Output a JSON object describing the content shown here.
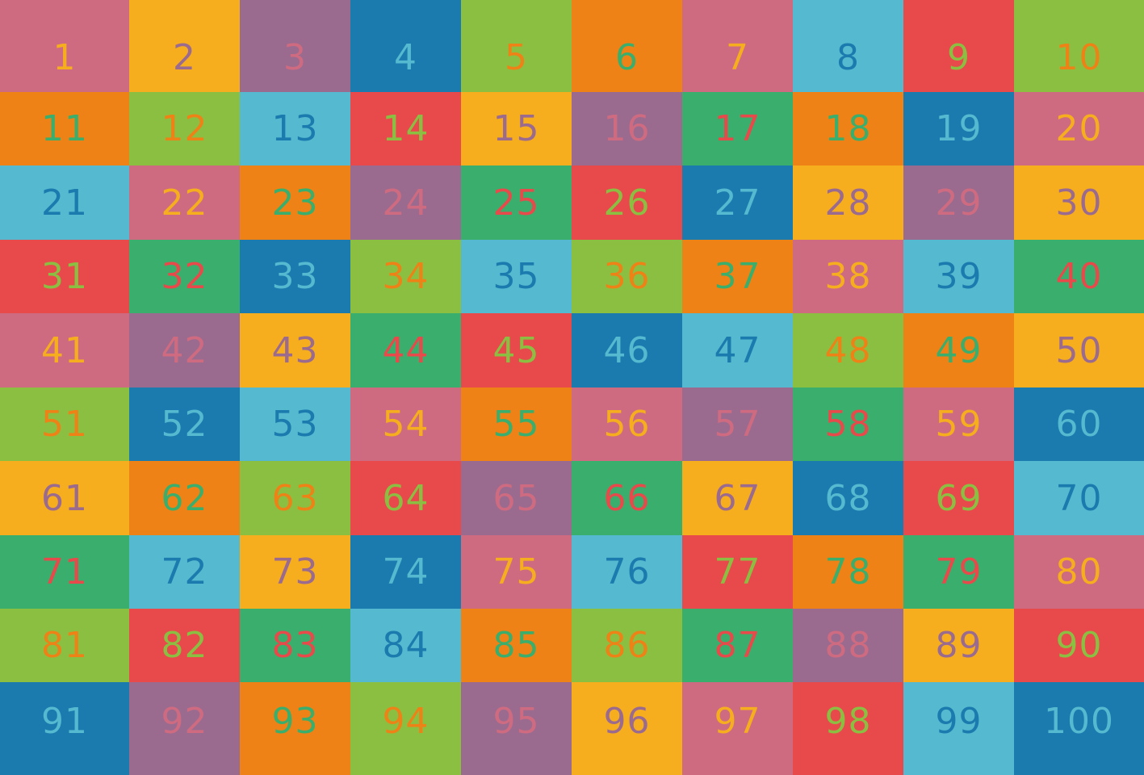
{
  "palette": {
    "pink": {
      "bg": "#cf6b80",
      "text": "#f6ae1e"
    },
    "yellow": {
      "bg": "#f6ae1e",
      "text": "#9b6b8f"
    },
    "purple": {
      "bg": "#9b6b8f",
      "text": "#cf6b80"
    },
    "darkblue": {
      "bg": "#1b7aae",
      "text": "#55b9cf"
    },
    "lightgreen": {
      "bg": "#8bbf42",
      "text": "#ee8217"
    },
    "orange": {
      "bg": "#ee8217",
      "text": "#3aae6c"
    },
    "lightblue": {
      "bg": "#55b9cf",
      "text": "#1b7aae"
    },
    "red": {
      "bg": "#e84a4b",
      "text": "#8bbf42"
    },
    "green": {
      "bg": "#3aae6c",
      "text": "#e84a4b"
    }
  },
  "grid": {
    "cells": [
      {
        "label": "1",
        "color": "pink"
      },
      {
        "label": "2",
        "color": "yellow"
      },
      {
        "label": "3",
        "color": "purple"
      },
      {
        "label": "4",
        "color": "darkblue"
      },
      {
        "label": "5",
        "color": "lightgreen"
      },
      {
        "label": "6",
        "color": "orange"
      },
      {
        "label": "7",
        "color": "pink"
      },
      {
        "label": "8",
        "color": "lightblue"
      },
      {
        "label": "9",
        "color": "red"
      },
      {
        "label": "10",
        "color": "lightgreen"
      },
      {
        "label": "11",
        "color": "orange"
      },
      {
        "label": "12",
        "color": "lightgreen"
      },
      {
        "label": "13",
        "color": "lightblue"
      },
      {
        "label": "14",
        "color": "red"
      },
      {
        "label": "15",
        "color": "yellow"
      },
      {
        "label": "16",
        "color": "purple"
      },
      {
        "label": "17",
        "color": "green"
      },
      {
        "label": "18",
        "color": "orange"
      },
      {
        "label": "19",
        "color": "darkblue"
      },
      {
        "label": "20",
        "color": "pink"
      },
      {
        "label": "21",
        "color": "lightblue"
      },
      {
        "label": "22",
        "color": "pink"
      },
      {
        "label": "23",
        "color": "orange"
      },
      {
        "label": "24",
        "color": "purple"
      },
      {
        "label": "25",
        "color": "green"
      },
      {
        "label": "26",
        "color": "red"
      },
      {
        "label": "27",
        "color": "darkblue"
      },
      {
        "label": "28",
        "color": "yellow"
      },
      {
        "label": "29",
        "color": "purple"
      },
      {
        "label": "30",
        "color": "yellow"
      },
      {
        "label": "31",
        "color": "red"
      },
      {
        "label": "32",
        "color": "green"
      },
      {
        "label": "33",
        "color": "darkblue"
      },
      {
        "label": "34",
        "color": "lightgreen"
      },
      {
        "label": "35",
        "color": "lightblue"
      },
      {
        "label": "36",
        "color": "lightgreen"
      },
      {
        "label": "37",
        "color": "orange"
      },
      {
        "label": "38",
        "color": "pink"
      },
      {
        "label": "39",
        "color": "lightblue"
      },
      {
        "label": "40",
        "color": "green"
      },
      {
        "label": "41",
        "color": "pink"
      },
      {
        "label": "42",
        "color": "purple"
      },
      {
        "label": "43",
        "color": "yellow"
      },
      {
        "label": "44",
        "color": "green"
      },
      {
        "label": "45",
        "color": "red"
      },
      {
        "label": "46",
        "color": "darkblue"
      },
      {
        "label": "47",
        "color": "lightblue"
      },
      {
        "label": "48",
        "color": "lightgreen"
      },
      {
        "label": "49",
        "color": "orange"
      },
      {
        "label": "50",
        "color": "yellow"
      },
      {
        "label": "51",
        "color": "lightgreen"
      },
      {
        "label": "52",
        "color": "darkblue"
      },
      {
        "label": "53",
        "color": "lightblue"
      },
      {
        "label": "54",
        "color": "pink"
      },
      {
        "label": "55",
        "color": "orange"
      },
      {
        "label": "56",
        "color": "pink"
      },
      {
        "label": "57",
        "color": "purple"
      },
      {
        "label": "58",
        "color": "green"
      },
      {
        "label": "59",
        "color": "pink"
      },
      {
        "label": "60",
        "color": "darkblue"
      },
      {
        "label": "61",
        "color": "yellow"
      },
      {
        "label": "62",
        "color": "orange"
      },
      {
        "label": "63",
        "color": "lightgreen"
      },
      {
        "label": "64",
        "color": "red"
      },
      {
        "label": "65",
        "color": "purple"
      },
      {
        "label": "66",
        "color": "green"
      },
      {
        "label": "67",
        "color": "yellow"
      },
      {
        "label": "68",
        "color": "darkblue"
      },
      {
        "label": "69",
        "color": "red"
      },
      {
        "label": "70",
        "color": "lightblue"
      },
      {
        "label": "71",
        "color": "green"
      },
      {
        "label": "72",
        "color": "lightblue"
      },
      {
        "label": "73",
        "color": "yellow"
      },
      {
        "label": "74",
        "color": "darkblue"
      },
      {
        "label": "75",
        "color": "pink"
      },
      {
        "label": "76",
        "color": "lightblue"
      },
      {
        "label": "77",
        "color": "red"
      },
      {
        "label": "78",
        "color": "orange"
      },
      {
        "label": "79",
        "color": "green"
      },
      {
        "label": "80",
        "color": "pink"
      },
      {
        "label": "81",
        "color": "lightgreen"
      },
      {
        "label": "82",
        "color": "red"
      },
      {
        "label": "83",
        "color": "green"
      },
      {
        "label": "84",
        "color": "lightblue"
      },
      {
        "label": "85",
        "color": "orange"
      },
      {
        "label": "86",
        "color": "lightgreen"
      },
      {
        "label": "87",
        "color": "green"
      },
      {
        "label": "88",
        "color": "purple"
      },
      {
        "label": "89",
        "color": "yellow"
      },
      {
        "label": "90",
        "color": "red"
      },
      {
        "label": "91",
        "color": "darkblue"
      },
      {
        "label": "92",
        "color": "purple"
      },
      {
        "label": "93",
        "color": "orange"
      },
      {
        "label": "94",
        "color": "lightgreen"
      },
      {
        "label": "95",
        "color": "purple"
      },
      {
        "label": "96",
        "color": "yellow"
      },
      {
        "label": "97",
        "color": "pink"
      },
      {
        "label": "98",
        "color": "red"
      },
      {
        "label": "99",
        "color": "lightblue"
      },
      {
        "label": "100",
        "color": "darkblue"
      }
    ]
  }
}
